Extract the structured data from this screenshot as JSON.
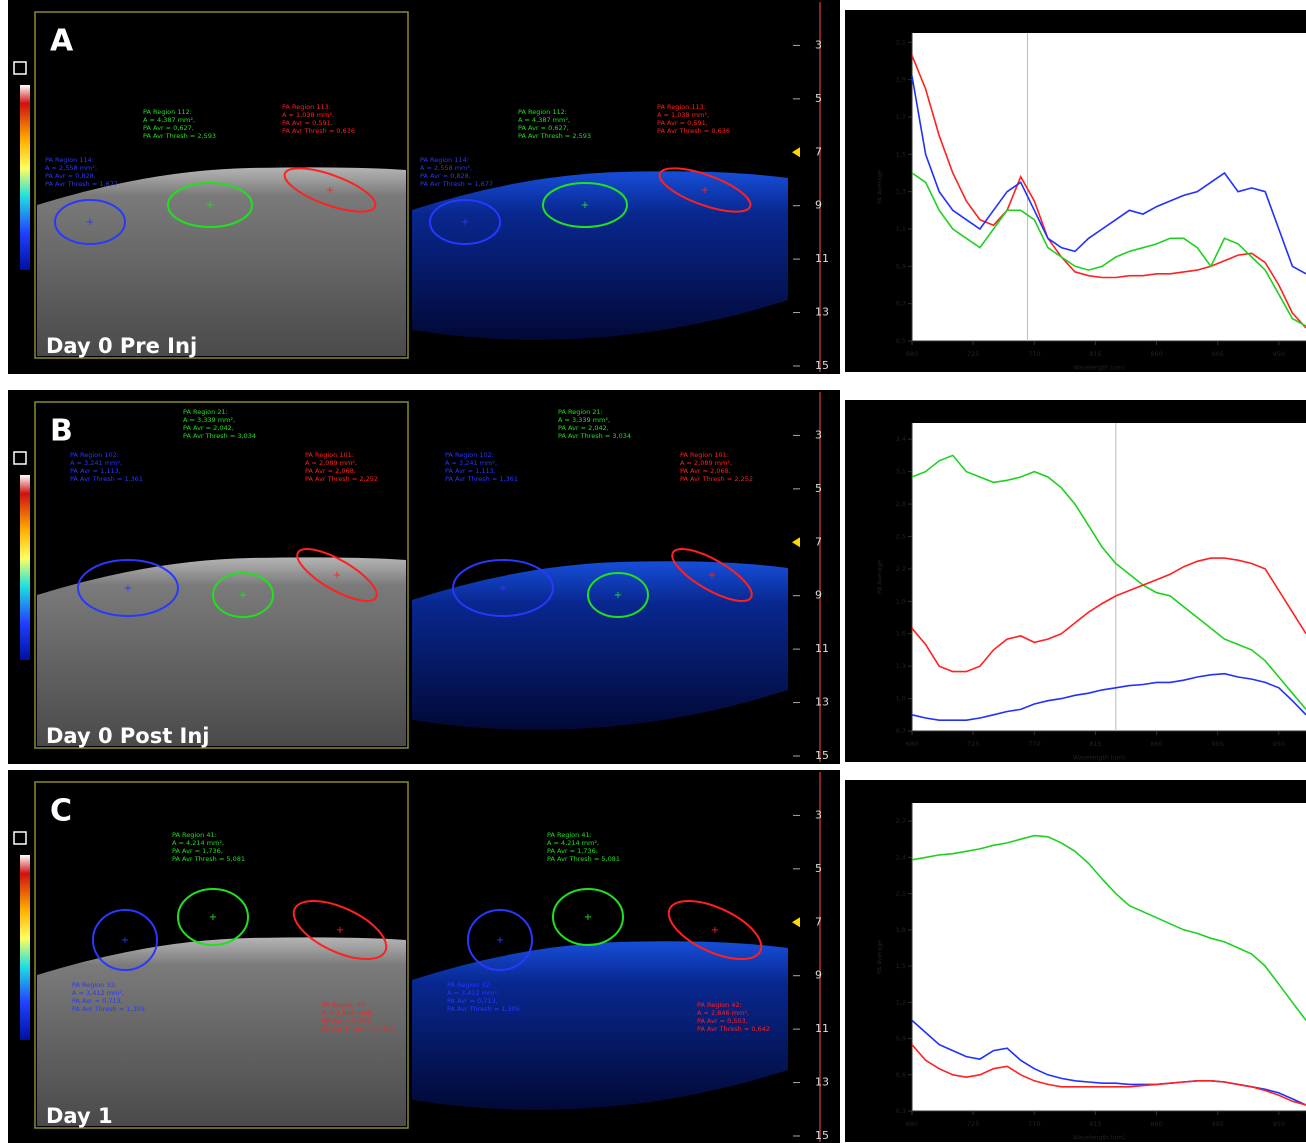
{
  "panels": [
    {
      "label": "A",
      "day": "Day 0 Pre Inj",
      "depth_lim": [
        1.3,
        15.3
      ],
      "depth_ticks": [
        3,
        5,
        7,
        9,
        11,
        13,
        15
      ],
      "depth_marker": 7,
      "regions": [
        {
          "color": "#20e020",
          "lines": [
            "PA Region 112:",
            "A = 4,387 mm²,",
            "PA Avr = 0,627,",
            "PA Avr Thresh = 2,593"
          ]
        },
        {
          "color": "#ff2020",
          "lines": [
            "PA Region 113:",
            "A = 1,038 mm²,",
            "PA Avr = 0,591,",
            "PA Avr Thresh = 0,636"
          ]
        },
        {
          "color": "#2838ff",
          "lines": [
            "PA Region 114:",
            "A = 2,558 mm²,",
            "PA Avr = 0,828,",
            "PA Avr Thresh = 1,677"
          ]
        }
      ]
    },
    {
      "label": "B",
      "day": "Day 0 Post Inj",
      "depth_lim": [
        1.3,
        15.3
      ],
      "depth_ticks": [
        3,
        5,
        7,
        9,
        11,
        13,
        15
      ],
      "depth_marker": 7,
      "regions": [
        {
          "color": "#20e020",
          "lines": [
            "PA Region 21:",
            "A = 3,339 mm²,",
            "PA Avr = 2,042,",
            "PA Avr Thresh = 3,034"
          ]
        },
        {
          "color": "#2838ff",
          "lines": [
            "PA Region 102:",
            "A = 3,241 mm²,",
            "PA Avr = 1,113,",
            "PA Avr Thresh = 1,361"
          ]
        },
        {
          "color": "#ff2020",
          "lines": [
            "PA Region 101:",
            "A = 2,089 mm²,",
            "PA Avr = 2,068,",
            "PA Avr Thresh = 2,252"
          ]
        }
      ]
    },
    {
      "label": "C",
      "day": "Day 1",
      "depth_lim": [
        1.3,
        15.3
      ],
      "depth_ticks": [
        3,
        5,
        7,
        9,
        11,
        13,
        15
      ],
      "depth_marker": 7,
      "regions": [
        {
          "color": "#20e020",
          "lines": [
            "PA Region 41:",
            "A = 4,214 mm²,",
            "PA Avr = 1,736,",
            "PA Avr Thresh = 5,081"
          ]
        },
        {
          "color": "#2838ff",
          "lines": [
            "PA Region 32:",
            "A = 3,412 mm²,",
            "PA Avr = 0,713,",
            "PA Avr Thresh = 1,305"
          ]
        },
        {
          "color": "#ff2020",
          "lines": [
            "PA Region 42:",
            "A = 2,846 mm²,",
            "PA Avr = 0,503,",
            "PA Avr Thresh = 0,642"
          ]
        }
      ]
    }
  ],
  "chart_data": [
    {
      "type": "line",
      "x_label": "Wavelength (nm)",
      "y_label": "PA Average",
      "x": [
        680,
        690,
        700,
        710,
        720,
        730,
        740,
        750,
        760,
        770,
        780,
        790,
        800,
        810,
        820,
        830,
        840,
        850,
        860,
        870,
        880,
        890,
        900,
        910,
        920,
        930,
        940,
        950,
        960,
        970
      ],
      "xlim": [
        680,
        970
      ],
      "xticks": [
        680,
        725,
        770,
        815,
        860,
        905,
        950
      ],
      "cursor_x": 765,
      "ylim": [
        0.5,
        2.15
      ],
      "yticks": [
        {
          "value": 0.5,
          "label": "0,5"
        },
        {
          "value": 0.7,
          "label": "0,7"
        },
        {
          "value": 0.9,
          "label": "0,9"
        },
        {
          "value": 1.1,
          "label": "1,1"
        },
        {
          "value": 1.3,
          "label": "1,3"
        },
        {
          "value": 1.5,
          "label": "1,5"
        },
        {
          "value": 1.7,
          "label": "1,7"
        },
        {
          "value": 1.9,
          "label": "1,9"
        },
        {
          "value": 2.1,
          "label": "2,1"
        }
      ],
      "series": [
        {
          "color": "#ff2020",
          "values": [
            2.03,
            1.85,
            1.6,
            1.4,
            1.25,
            1.15,
            1.12,
            1.2,
            1.38,
            1.25,
            1.05,
            0.95,
            0.87,
            0.85,
            0.84,
            0.84,
            0.85,
            0.85,
            0.86,
            0.86,
            0.87,
            0.88,
            0.9,
            0.93,
            0.96,
            0.97,
            0.92,
            0.8,
            0.65,
            0.57
          ]
        },
        {
          "color": "#2030ff",
          "values": [
            1.92,
            1.5,
            1.3,
            1.2,
            1.15,
            1.1,
            1.2,
            1.3,
            1.35,
            1.2,
            1.05,
            1.0,
            0.98,
            1.05,
            1.1,
            1.15,
            1.2,
            1.18,
            1.22,
            1.25,
            1.28,
            1.3,
            1.35,
            1.4,
            1.3,
            1.32,
            1.3,
            1.1,
            0.9,
            0.86
          ]
        },
        {
          "color": "#20d020",
          "values": [
            1.4,
            1.35,
            1.2,
            1.1,
            1.05,
            1.0,
            1.1,
            1.2,
            1.2,
            1.15,
            1.0,
            0.95,
            0.9,
            0.88,
            0.9,
            0.95,
            0.98,
            1.0,
            1.02,
            1.05,
            1.05,
            1.0,
            0.9,
            1.05,
            1.02,
            0.95,
            0.88,
            0.75,
            0.62,
            0.58
          ]
        }
      ]
    },
    {
      "type": "line",
      "x_label": "Wavelength (nm)",
      "y_label": "PA Average",
      "x": [
        680,
        690,
        700,
        710,
        720,
        730,
        740,
        750,
        760,
        770,
        780,
        790,
        800,
        810,
        820,
        830,
        840,
        850,
        860,
        870,
        880,
        890,
        900,
        910,
        920,
        930,
        940,
        950,
        960,
        970
      ],
      "xlim": [
        680,
        970
      ],
      "xticks": [
        680,
        725,
        770,
        815,
        860,
        905,
        950
      ],
      "cursor_x": 830,
      "ylim": [
        0.7,
        3.55
      ],
      "yticks": [
        {
          "value": 0.7,
          "label": "0,7"
        },
        {
          "value": 1.0,
          "label": "1,0"
        },
        {
          "value": 1.3,
          "label": "1,3"
        },
        {
          "value": 1.6,
          "label": "1,6"
        },
        {
          "value": 1.9,
          "label": "1,9"
        },
        {
          "value": 2.2,
          "label": "2,2"
        },
        {
          "value": 2.5,
          "label": "2,5"
        },
        {
          "value": 2.8,
          "label": "2,8"
        },
        {
          "value": 3.1,
          "label": "3,1"
        },
        {
          "value": 3.4,
          "label": "3,4"
        }
      ],
      "series": [
        {
          "color": "#20d020",
          "values": [
            3.05,
            3.1,
            3.2,
            3.25,
            3.1,
            3.05,
            3.0,
            3.02,
            3.05,
            3.1,
            3.05,
            2.95,
            2.8,
            2.6,
            2.4,
            2.25,
            2.15,
            2.05,
            1.98,
            1.95,
            1.85,
            1.75,
            1.65,
            1.55,
            1.5,
            1.45,
            1.35,
            1.2,
            1.05,
            0.9
          ]
        },
        {
          "color": "#ff2020",
          "values": [
            1.65,
            1.5,
            1.3,
            1.25,
            1.25,
            1.3,
            1.45,
            1.55,
            1.58,
            1.52,
            1.55,
            1.6,
            1.7,
            1.8,
            1.88,
            1.95,
            2.0,
            2.05,
            2.1,
            2.15,
            2.22,
            2.27,
            2.3,
            2.3,
            2.28,
            2.25,
            2.2,
            2.0,
            1.8,
            1.6
          ]
        },
        {
          "color": "#2030ff",
          "values": [
            0.85,
            0.82,
            0.8,
            0.8,
            0.8,
            0.82,
            0.85,
            0.88,
            0.9,
            0.95,
            0.98,
            1.0,
            1.03,
            1.05,
            1.08,
            1.1,
            1.12,
            1.13,
            1.15,
            1.15,
            1.17,
            1.2,
            1.22,
            1.23,
            1.2,
            1.18,
            1.15,
            1.1,
            0.98,
            0.85
          ]
        }
      ]
    },
    {
      "type": "line",
      "x_label": "Wavelength (nm)",
      "y_label": "PA Average",
      "x": [
        680,
        690,
        700,
        710,
        720,
        730,
        740,
        750,
        760,
        770,
        780,
        790,
        800,
        810,
        820,
        830,
        840,
        850,
        860,
        870,
        880,
        890,
        900,
        910,
        920,
        930,
        940,
        950,
        960,
        970
      ],
      "xlim": [
        680,
        970
      ],
      "xticks": [
        680,
        725,
        770,
        815,
        860,
        905,
        950
      ],
      "ylim": [
        0.3,
        2.85
      ],
      "yticks": [
        {
          "value": 0.3,
          "label": "0,3"
        },
        {
          "value": 0.6,
          "label": "0,6"
        },
        {
          "value": 0.9,
          "label": "0,9"
        },
        {
          "value": 1.2,
          "label": "1,2"
        },
        {
          "value": 1.5,
          "label": "1,5"
        },
        {
          "value": 1.8,
          "label": "1,8"
        },
        {
          "value": 2.1,
          "label": "2,1"
        },
        {
          "value": 2.4,
          "label": "2,4"
        },
        {
          "value": 2.7,
          "label": "2,7"
        }
      ],
      "series": [
        {
          "color": "#20d020",
          "values": [
            2.38,
            2.4,
            2.42,
            2.43,
            2.45,
            2.47,
            2.5,
            2.52,
            2.55,
            2.58,
            2.57,
            2.52,
            2.45,
            2.35,
            2.22,
            2.1,
            2.0,
            1.95,
            1.9,
            1.85,
            1.8,
            1.77,
            1.73,
            1.7,
            1.65,
            1.6,
            1.5,
            1.35,
            1.2,
            1.05
          ]
        },
        {
          "color": "#2030ff",
          "values": [
            1.05,
            0.95,
            0.85,
            0.8,
            0.75,
            0.73,
            0.8,
            0.82,
            0.72,
            0.65,
            0.6,
            0.57,
            0.55,
            0.54,
            0.53,
            0.53,
            0.52,
            0.52,
            0.52,
            0.53,
            0.54,
            0.55,
            0.55,
            0.54,
            0.52,
            0.5,
            0.48,
            0.45,
            0.4,
            0.35
          ]
        },
        {
          "color": "#ff2020",
          "values": [
            0.85,
            0.72,
            0.65,
            0.6,
            0.58,
            0.6,
            0.65,
            0.67,
            0.6,
            0.55,
            0.52,
            0.5,
            0.5,
            0.5,
            0.5,
            0.5,
            0.5,
            0.51,
            0.52,
            0.53,
            0.54,
            0.55,
            0.55,
            0.54,
            0.52,
            0.5,
            0.47,
            0.43,
            0.38,
            0.35
          ]
        }
      ]
    }
  ]
}
